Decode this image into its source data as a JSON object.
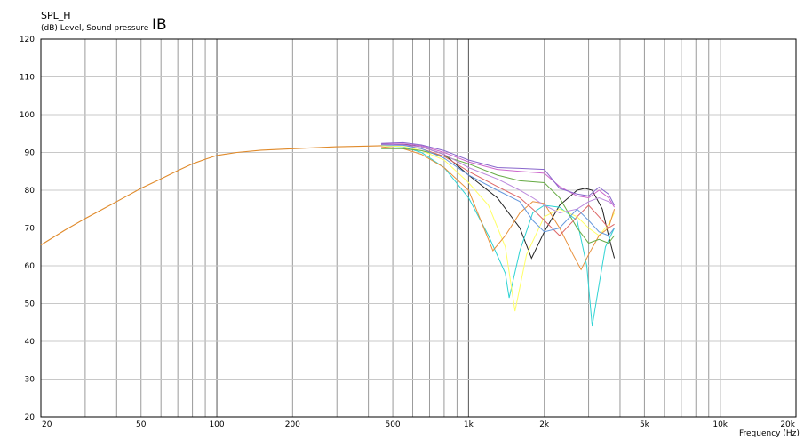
{
  "header": {
    "title": "SPL_H",
    "subtitle": "(dB)  Level, Sound pressure",
    "tag": "IB"
  },
  "chart_data": {
    "type": "line",
    "xscale": "log",
    "xlim": [
      20,
      20000
    ],
    "ylim": [
      20,
      120
    ],
    "grid": true,
    "xlabel": "Frequency  (Hz)",
    "ylabel": "(dB)  Level, Sound pressure",
    "xticks": [
      {
        "v": 20,
        "label": "20"
      },
      {
        "v": 50,
        "label": "50"
      },
      {
        "v": 100,
        "label": "100"
      },
      {
        "v": 200,
        "label": "200"
      },
      {
        "v": 500,
        "label": "500"
      },
      {
        "v": 1000,
        "label": "1k"
      },
      {
        "v": 2000,
        "label": "2k"
      },
      {
        "v": 5000,
        "label": "5k"
      },
      {
        "v": 10000,
        "label": "10k"
      },
      {
        "v": 20000,
        "label": "20k"
      }
    ],
    "yticks": [
      {
        "v": 20,
        "label": "20"
      },
      {
        "v": 30,
        "label": "30"
      },
      {
        "v": 40,
        "label": "40"
      },
      {
        "v": 50,
        "label": "50"
      },
      {
        "v": 60,
        "label": "60"
      },
      {
        "v": 70,
        "label": "70"
      },
      {
        "v": 80,
        "label": "80"
      },
      {
        "v": 90,
        "label": "90"
      },
      {
        "v": 100,
        "label": "100"
      },
      {
        "v": 110,
        "label": "110"
      },
      {
        "v": 120,
        "label": "120"
      }
    ],
    "common_curve": {
      "color": "#e08a2a",
      "points": [
        [
          20,
          65.5
        ],
        [
          25,
          69.5
        ],
        [
          30,
          72.5
        ],
        [
          40,
          77
        ],
        [
          50,
          80.5
        ],
        [
          60,
          83
        ],
        [
          70,
          85.2
        ],
        [
          80,
          87
        ],
        [
          90,
          88.2
        ],
        [
          100,
          89.2
        ],
        [
          120,
          90
        ],
        [
          150,
          90.6
        ],
        [
          200,
          91
        ],
        [
          300,
          91.5
        ],
        [
          400,
          91.7
        ],
        [
          450,
          91.8
        ]
      ]
    },
    "series": [
      {
        "color": "#222222",
        "values": [
          [
            450,
            92.2
          ],
          [
            550,
            92.2
          ],
          [
            650,
            91.5
          ],
          [
            800,
            89.5
          ],
          [
            1000,
            84
          ],
          [
            1300,
            78
          ],
          [
            1600,
            70
          ],
          [
            1780,
            62
          ],
          [
            2000,
            69
          ],
          [
            2300,
            76
          ],
          [
            2700,
            80
          ],
          [
            2900,
            80.5
          ],
          [
            3100,
            80
          ],
          [
            3400,
            75
          ],
          [
            3600,
            68
          ],
          [
            3800,
            62
          ]
        ]
      },
      {
        "color": "#2ed3d3",
        "values": [
          [
            450,
            91.8
          ],
          [
            550,
            91.5
          ],
          [
            650,
            90
          ],
          [
            800,
            86
          ],
          [
            1000,
            78
          ],
          [
            1200,
            68
          ],
          [
            1400,
            58
          ],
          [
            1450,
            51.5
          ],
          [
            1600,
            64
          ],
          [
            1800,
            74
          ],
          [
            2000,
            76
          ],
          [
            2300,
            75.5
          ],
          [
            2700,
            72
          ],
          [
            2950,
            60
          ],
          [
            3100,
            44
          ],
          [
            3300,
            55
          ],
          [
            3500,
            65
          ],
          [
            3800,
            70
          ]
        ]
      },
      {
        "color": "#ffff66",
        "values": [
          [
            450,
            91.8
          ],
          [
            550,
            91.6
          ],
          [
            650,
            90.5
          ],
          [
            800,
            88
          ],
          [
            1000,
            82
          ],
          [
            1200,
            76
          ],
          [
            1400,
            65
          ],
          [
            1530,
            48
          ],
          [
            1700,
            63
          ],
          [
            2000,
            73
          ],
          [
            2300,
            75
          ],
          [
            2700,
            73
          ],
          [
            3000,
            70
          ],
          [
            3300,
            68
          ],
          [
            3600,
            71
          ],
          [
            3800,
            74
          ]
        ]
      },
      {
        "color": "#e8903a",
        "values": [
          [
            450,
            91.5
          ],
          [
            550,
            91
          ],
          [
            650,
            89.5
          ],
          [
            800,
            86
          ],
          [
            1000,
            80
          ],
          [
            1150,
            70
          ],
          [
            1250,
            64
          ],
          [
            1400,
            68
          ],
          [
            1600,
            74
          ],
          [
            1800,
            77
          ],
          [
            2000,
            76.5
          ],
          [
            2300,
            70
          ],
          [
            2600,
            63
          ],
          [
            2800,
            59
          ],
          [
            3000,
            63
          ],
          [
            3300,
            68
          ],
          [
            3600,
            70
          ],
          [
            3800,
            75
          ]
        ]
      },
      {
        "color": "#66aa44",
        "values": [
          [
            450,
            91
          ],
          [
            550,
            91
          ],
          [
            650,
            90.5
          ],
          [
            800,
            89
          ],
          [
            1000,
            87
          ],
          [
            1300,
            84
          ],
          [
            1600,
            82.5
          ],
          [
            2000,
            82
          ],
          [
            2300,
            78
          ],
          [
            2700,
            70
          ],
          [
            3000,
            66
          ],
          [
            3300,
            67
          ],
          [
            3600,
            66
          ],
          [
            3800,
            68
          ]
        ]
      },
      {
        "color": "#cc66cc",
        "values": [
          [
            450,
            92.2
          ],
          [
            550,
            92.3
          ],
          [
            650,
            91.8
          ],
          [
            800,
            90
          ],
          [
            1000,
            87.5
          ],
          [
            1300,
            85.5
          ],
          [
            1600,
            85
          ],
          [
            2000,
            84.5
          ],
          [
            2300,
            81
          ],
          [
            2700,
            78.5
          ],
          [
            3000,
            78
          ],
          [
            3300,
            80
          ],
          [
            3600,
            78
          ],
          [
            3800,
            75.5
          ]
        ]
      },
      {
        "color": "#8866cc",
        "values": [
          [
            450,
            92.4
          ],
          [
            550,
            92.6
          ],
          [
            650,
            92
          ],
          [
            800,
            90.5
          ],
          [
            1000,
            88
          ],
          [
            1300,
            86
          ],
          [
            1600,
            85.8
          ],
          [
            2000,
            85.5
          ],
          [
            2300,
            80.5
          ],
          [
            2700,
            79
          ],
          [
            3000,
            78.5
          ],
          [
            3300,
            80.8
          ],
          [
            3600,
            79
          ],
          [
            3800,
            76
          ]
        ]
      },
      {
        "color": "#dd6666",
        "values": [
          [
            450,
            92
          ],
          [
            550,
            92
          ],
          [
            650,
            91
          ],
          [
            800,
            89
          ],
          [
            1000,
            85
          ],
          [
            1300,
            81
          ],
          [
            1600,
            78
          ],
          [
            1800,
            75
          ],
          [
            2000,
            72
          ],
          [
            2300,
            68
          ],
          [
            2700,
            73
          ],
          [
            3000,
            76
          ],
          [
            3300,
            73
          ],
          [
            3600,
            70
          ],
          [
            3800,
            71
          ]
        ]
      },
      {
        "color": "#bb88dd",
        "values": [
          [
            450,
            92
          ],
          [
            550,
            92
          ],
          [
            650,
            91.5
          ],
          [
            800,
            89.5
          ],
          [
            1000,
            86
          ],
          [
            1300,
            83
          ],
          [
            1600,
            80
          ],
          [
            1800,
            78
          ],
          [
            2000,
            76
          ],
          [
            2300,
            74
          ],
          [
            2700,
            75
          ],
          [
            3000,
            77
          ],
          [
            3300,
            78
          ],
          [
            3600,
            77
          ],
          [
            3800,
            76
          ]
        ]
      },
      {
        "color": "#6699dd",
        "values": [
          [
            450,
            92
          ],
          [
            550,
            91.9
          ],
          [
            650,
            91
          ],
          [
            800,
            88.5
          ],
          [
            1000,
            84
          ],
          [
            1300,
            80
          ],
          [
            1600,
            77
          ],
          [
            1800,
            72
          ],
          [
            2000,
            69
          ],
          [
            2300,
            70
          ],
          [
            2700,
            75
          ],
          [
            3000,
            72
          ],
          [
            3300,
            69
          ],
          [
            3600,
            68
          ],
          [
            3800,
            70
          ]
        ]
      }
    ]
  }
}
